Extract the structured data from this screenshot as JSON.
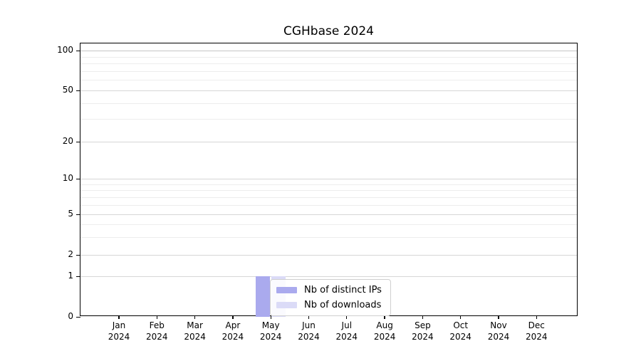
{
  "chart_data": {
    "type": "bar",
    "title": "CGHbase 2024",
    "categories": [
      {
        "label": "Jan",
        "year": "2024"
      },
      {
        "label": "Feb",
        "year": "2024"
      },
      {
        "label": "Mar",
        "year": "2024"
      },
      {
        "label": "Apr",
        "year": "2024"
      },
      {
        "label": "May",
        "year": "2024"
      },
      {
        "label": "Jun",
        "year": "2024"
      },
      {
        "label": "Jul",
        "year": "2024"
      },
      {
        "label": "Aug",
        "year": "2024"
      },
      {
        "label": "Sep",
        "year": "2024"
      },
      {
        "label": "Oct",
        "year": "2024"
      },
      {
        "label": "Nov",
        "year": "2024"
      },
      {
        "label": "Dec",
        "year": "2024"
      }
    ],
    "series": [
      {
        "name": "Nb of distinct IPs",
        "color": "#aaaaee",
        "values": [
          0,
          0,
          0,
          0,
          1,
          0,
          0,
          0,
          0,
          0,
          0,
          0
        ]
      },
      {
        "name": "Nb of downloads",
        "color": "#dbdbf7",
        "values": [
          0,
          0,
          0,
          0,
          1,
          0,
          0,
          0,
          0,
          0,
          0,
          0
        ]
      }
    ],
    "xlabel": "",
    "ylabel": "",
    "yscale": "log-like",
    "ylim": [
      0,
      110
    ],
    "grid": true,
    "y_ticks": [
      {
        "value": 0,
        "label": "0"
      },
      {
        "value": 1,
        "label": "1"
      },
      {
        "value": 2,
        "label": "2"
      },
      {
        "value": 5,
        "label": "5"
      },
      {
        "value": 10,
        "label": "10"
      },
      {
        "value": 20,
        "label": "20"
      },
      {
        "value": 50,
        "label": "50"
      },
      {
        "value": 100,
        "label": "100"
      }
    ],
    "legend_position": "lower center, inside plot"
  },
  "legend": {
    "items": [
      {
        "label": "Nb of distinct IPs",
        "color": "#aaaaee"
      },
      {
        "label": "Nb of downloads",
        "color": "#dbdbf7"
      }
    ]
  }
}
